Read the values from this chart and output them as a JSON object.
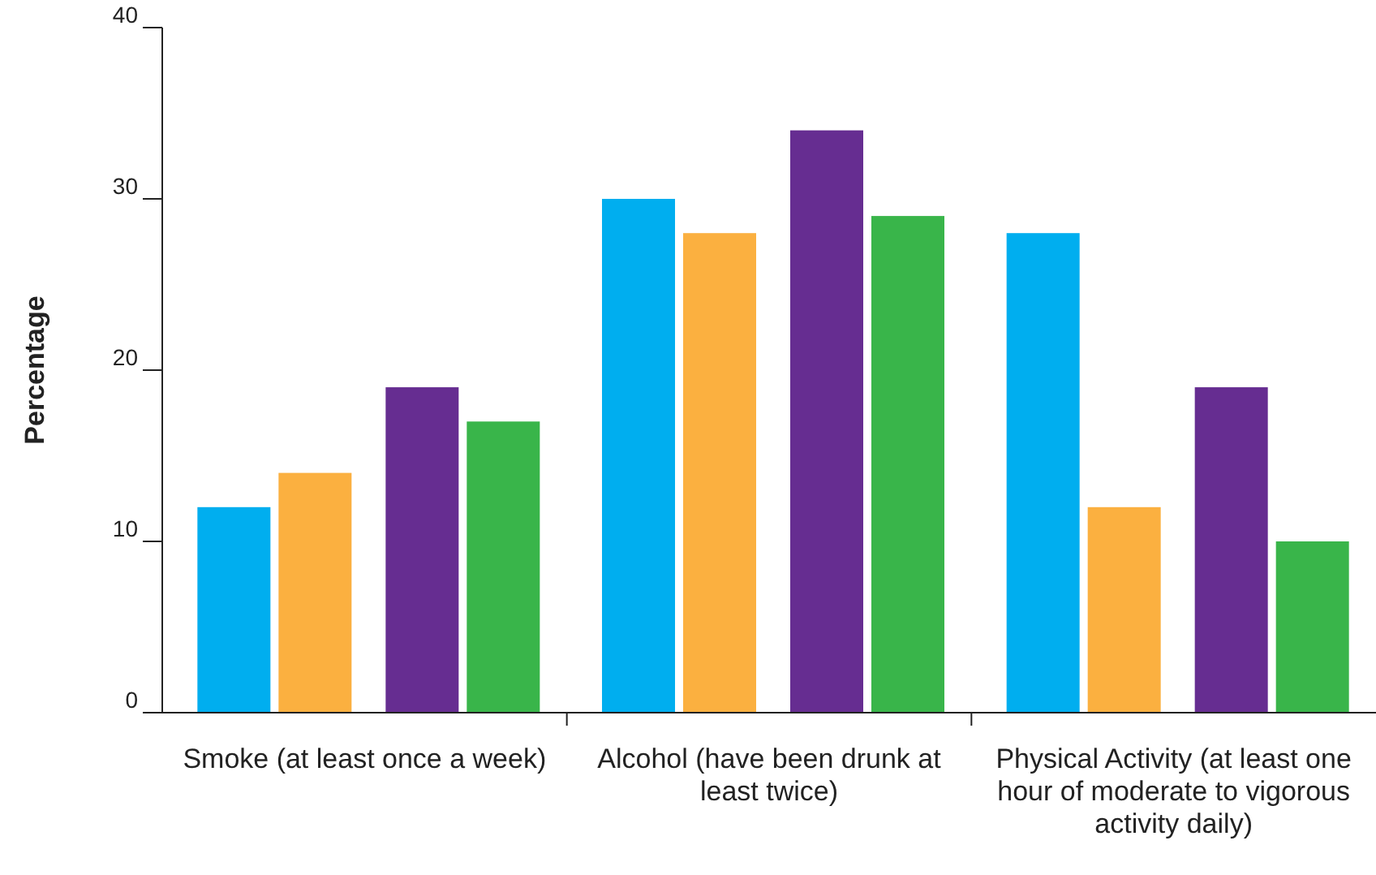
{
  "chart_data": {
    "type": "bar",
    "ylabel": "Percentage",
    "categories": [
      "Smoke (at least once a week)",
      "Alcohol (have been drunk at least twice)",
      "Physical Activity (at least one hour of moderate to vigorous activity daily)"
    ],
    "series": [
      {
        "color": "#00aeef",
        "values": [
          12,
          30,
          28
        ]
      },
      {
        "color": "#fbb040",
        "values": [
          14,
          28,
          12
        ]
      },
      {
        "color": "#662d91",
        "values": [
          19,
          34,
          19
        ]
      },
      {
        "color": "#39b54a",
        "values": [
          17,
          29,
          10
        ]
      }
    ],
    "ylim": [
      0,
      40
    ],
    "yticks": [
      0,
      10,
      20,
      30,
      40
    ],
    "grid": false
  }
}
